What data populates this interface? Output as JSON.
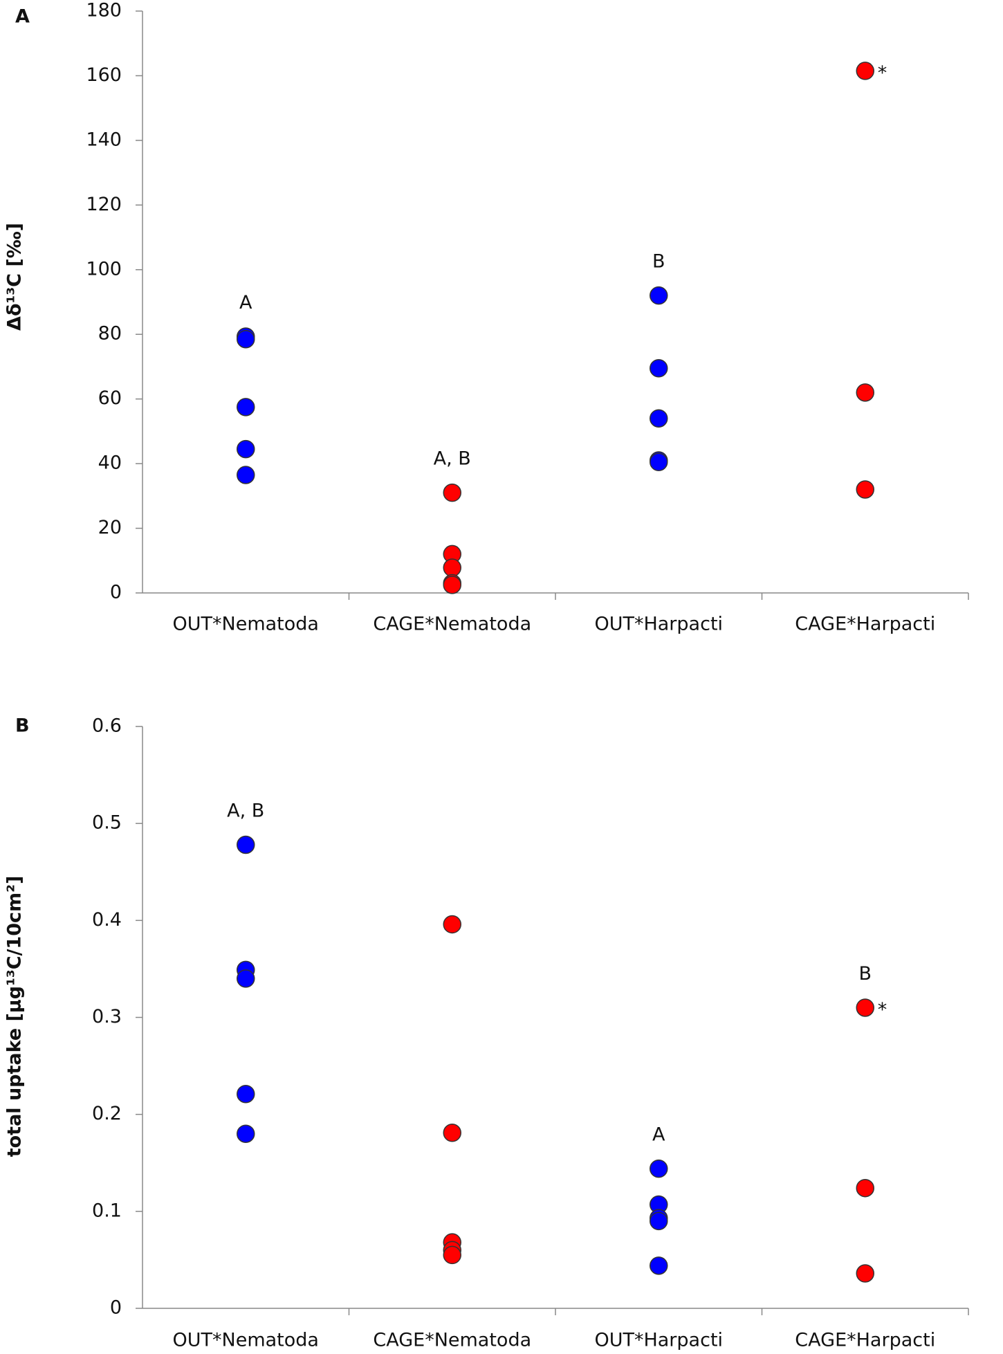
{
  "chart_data": [
    {
      "type": "strip",
      "panel": "A",
      "ylabel": "Δδ¹³C [‰]",
      "categories": [
        "OUT*Nematoda",
        "CAGE*Nematoda",
        "OUT*Harpacti",
        "CAGE*Harpacti"
      ],
      "colors": [
        "#0000ff",
        "#ff0000",
        "#0000ff",
        "#ff0000"
      ],
      "values": [
        [
          79.3,
          78.5,
          57.5,
          44.5,
          36.5
        ],
        [
          31,
          12,
          7.8,
          3,
          2.5
        ],
        [
          92,
          69.5,
          54,
          41,
          40.5
        ],
        [
          161.5,
          62,
          32
        ]
      ],
      "ylim": [
        0,
        180
      ],
      "yticks": [
        0,
        20,
        40,
        60,
        80,
        100,
        120,
        140,
        160,
        180
      ],
      "group_labels": [
        {
          "text": "A",
          "category": "OUT*Nematoda"
        },
        {
          "text": "A, B",
          "category": "CAGE*Nematoda"
        },
        {
          "text": "B",
          "category": "OUT*Harpacti"
        }
      ],
      "significance": [
        {
          "text": "*",
          "category": "CAGE*Harpacti"
        }
      ]
    },
    {
      "type": "strip",
      "panel": "B",
      "ylabel": "total uptake [µg¹³C/10cm²]",
      "categories": [
        "OUT*Nematoda",
        "CAGE*Nematoda",
        "OUT*Harpacti",
        "CAGE*Harpacti"
      ],
      "colors": [
        "#0000ff",
        "#ff0000",
        "#0000ff",
        "#ff0000"
      ],
      "values": [
        [
          0.478,
          0.349,
          0.34,
          0.221,
          0.18
        ],
        [
          0.396,
          0.181,
          0.068,
          0.06,
          0.055
        ],
        [
          0.144,
          0.107,
          0.093,
          0.09,
          0.044
        ],
        [
          0.31,
          0.124,
          0.036
        ]
      ],
      "ylim": [
        0,
        0.6
      ],
      "yticks": [
        0,
        0.1,
        0.2,
        0.3,
        0.4,
        0.5,
        0.6
      ],
      "group_labels": [
        {
          "text": "A, B",
          "category": "OUT*Nematoda"
        },
        {
          "text": "A",
          "category": "OUT*Harpacti"
        },
        {
          "text": "B",
          "category": "CAGE*Harpacti"
        }
      ],
      "significance": [
        {
          "text": "*",
          "category": "CAGE*Harpacti"
        }
      ]
    }
  ]
}
